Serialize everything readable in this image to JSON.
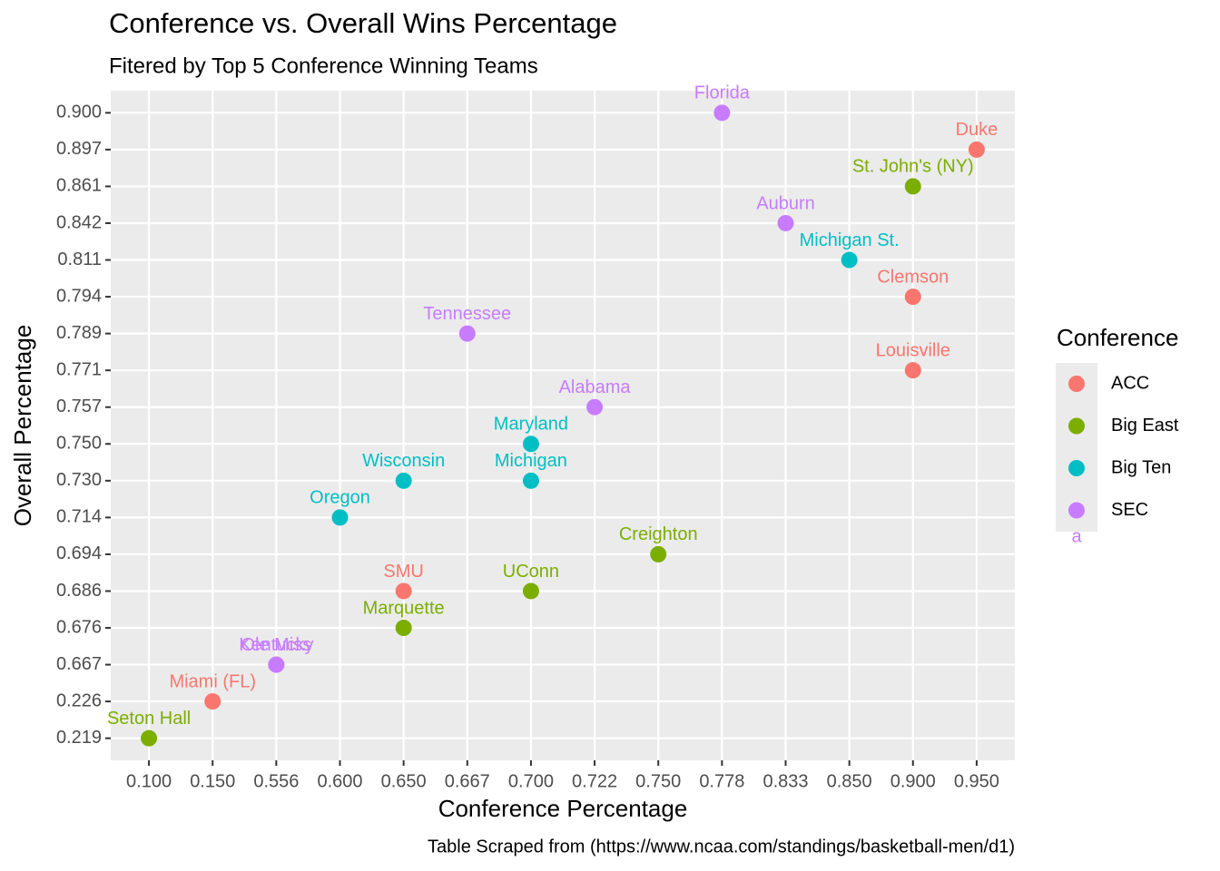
{
  "chart_data": {
    "type": "scatter",
    "title": "Conference vs. Overall Wins Percentage",
    "subtitle": "Fitered by Top 5 Conference Winning Teams",
    "x_label": "Conference Percentage",
    "y_label": "Overall Percentage",
    "caption": "Table Scraped from (https://www.ncaa.com/standings/basketball-men/d1)",
    "legend_title": "Conference",
    "legend_glyph_text": "a",
    "grid": true,
    "xticks": [
      {
        "value": 0.1,
        "label": "0.100"
      },
      {
        "value": 0.15,
        "label": "0.150"
      },
      {
        "value": 0.556,
        "label": "0.556"
      },
      {
        "value": 0.6,
        "label": "0.600"
      },
      {
        "value": 0.65,
        "label": "0.650"
      },
      {
        "value": 0.667,
        "label": "0.667"
      },
      {
        "value": 0.7,
        "label": "0.700"
      },
      {
        "value": 0.722,
        "label": "0.722"
      },
      {
        "value": 0.75,
        "label": "0.750"
      },
      {
        "value": 0.778,
        "label": "0.778"
      },
      {
        "value": 0.833,
        "label": "0.833"
      },
      {
        "value": 0.85,
        "label": "0.850"
      },
      {
        "value": 0.9,
        "label": "0.900"
      },
      {
        "value": 0.95,
        "label": "0.950"
      }
    ],
    "yticks": [
      {
        "value": 0.219,
        "label": "0.219"
      },
      {
        "value": 0.226,
        "label": "0.226"
      },
      {
        "value": 0.667,
        "label": "0.667"
      },
      {
        "value": 0.676,
        "label": "0.676"
      },
      {
        "value": 0.686,
        "label": "0.686"
      },
      {
        "value": 0.694,
        "label": "0.694"
      },
      {
        "value": 0.714,
        "label": "0.714"
      },
      {
        "value": 0.73,
        "label": "0.730"
      },
      {
        "value": 0.75,
        "label": "0.750"
      },
      {
        "value": 0.757,
        "label": "0.757"
      },
      {
        "value": 0.771,
        "label": "0.771"
      },
      {
        "value": 0.789,
        "label": "0.789"
      },
      {
        "value": 0.794,
        "label": "0.794"
      },
      {
        "value": 0.811,
        "label": "0.811"
      },
      {
        "value": 0.842,
        "label": "0.842"
      },
      {
        "value": 0.861,
        "label": "0.861"
      },
      {
        "value": 0.897,
        "label": "0.897"
      },
      {
        "value": 0.9,
        "label": "0.900"
      }
    ],
    "series": [
      {
        "name": "ACC",
        "color": "#F8766D",
        "labels": [
          "Duke",
          "Clemson",
          "Louisville",
          "SMU",
          "Miami (FL)"
        ],
        "x": [
          0.95,
          0.9,
          0.9,
          0.65,
          0.15
        ],
        "y": [
          0.897,
          0.794,
          0.771,
          0.686,
          0.226
        ]
      },
      {
        "name": "Big East",
        "color": "#7CAE00",
        "labels": [
          "St. John's (NY)",
          "Creighton",
          "UConn",
          "Marquette",
          "Seton Hall"
        ],
        "x": [
          0.9,
          0.75,
          0.7,
          0.65,
          0.1
        ],
        "y": [
          0.861,
          0.694,
          0.686,
          0.676,
          0.219
        ]
      },
      {
        "name": "Big Ten",
        "color": "#00BFC4",
        "labels": [
          "Michigan St.",
          "Maryland",
          "Michigan",
          "Wisconsin",
          "Oregon"
        ],
        "x": [
          0.85,
          0.7,
          0.7,
          0.65,
          0.6
        ],
        "y": [
          0.811,
          0.75,
          0.73,
          0.73,
          0.714
        ]
      },
      {
        "name": "SEC",
        "color": "#C77CFF",
        "labels": [
          "Florida",
          "Auburn",
          "Tennessee",
          "Alabama",
          "Kentucky",
          "Ole Miss"
        ],
        "x": [
          0.778,
          0.833,
          0.667,
          0.722,
          0.556,
          0.556
        ],
        "y": [
          0.9,
          0.842,
          0.789,
          0.757,
          0.667,
          0.667
        ]
      }
    ]
  }
}
